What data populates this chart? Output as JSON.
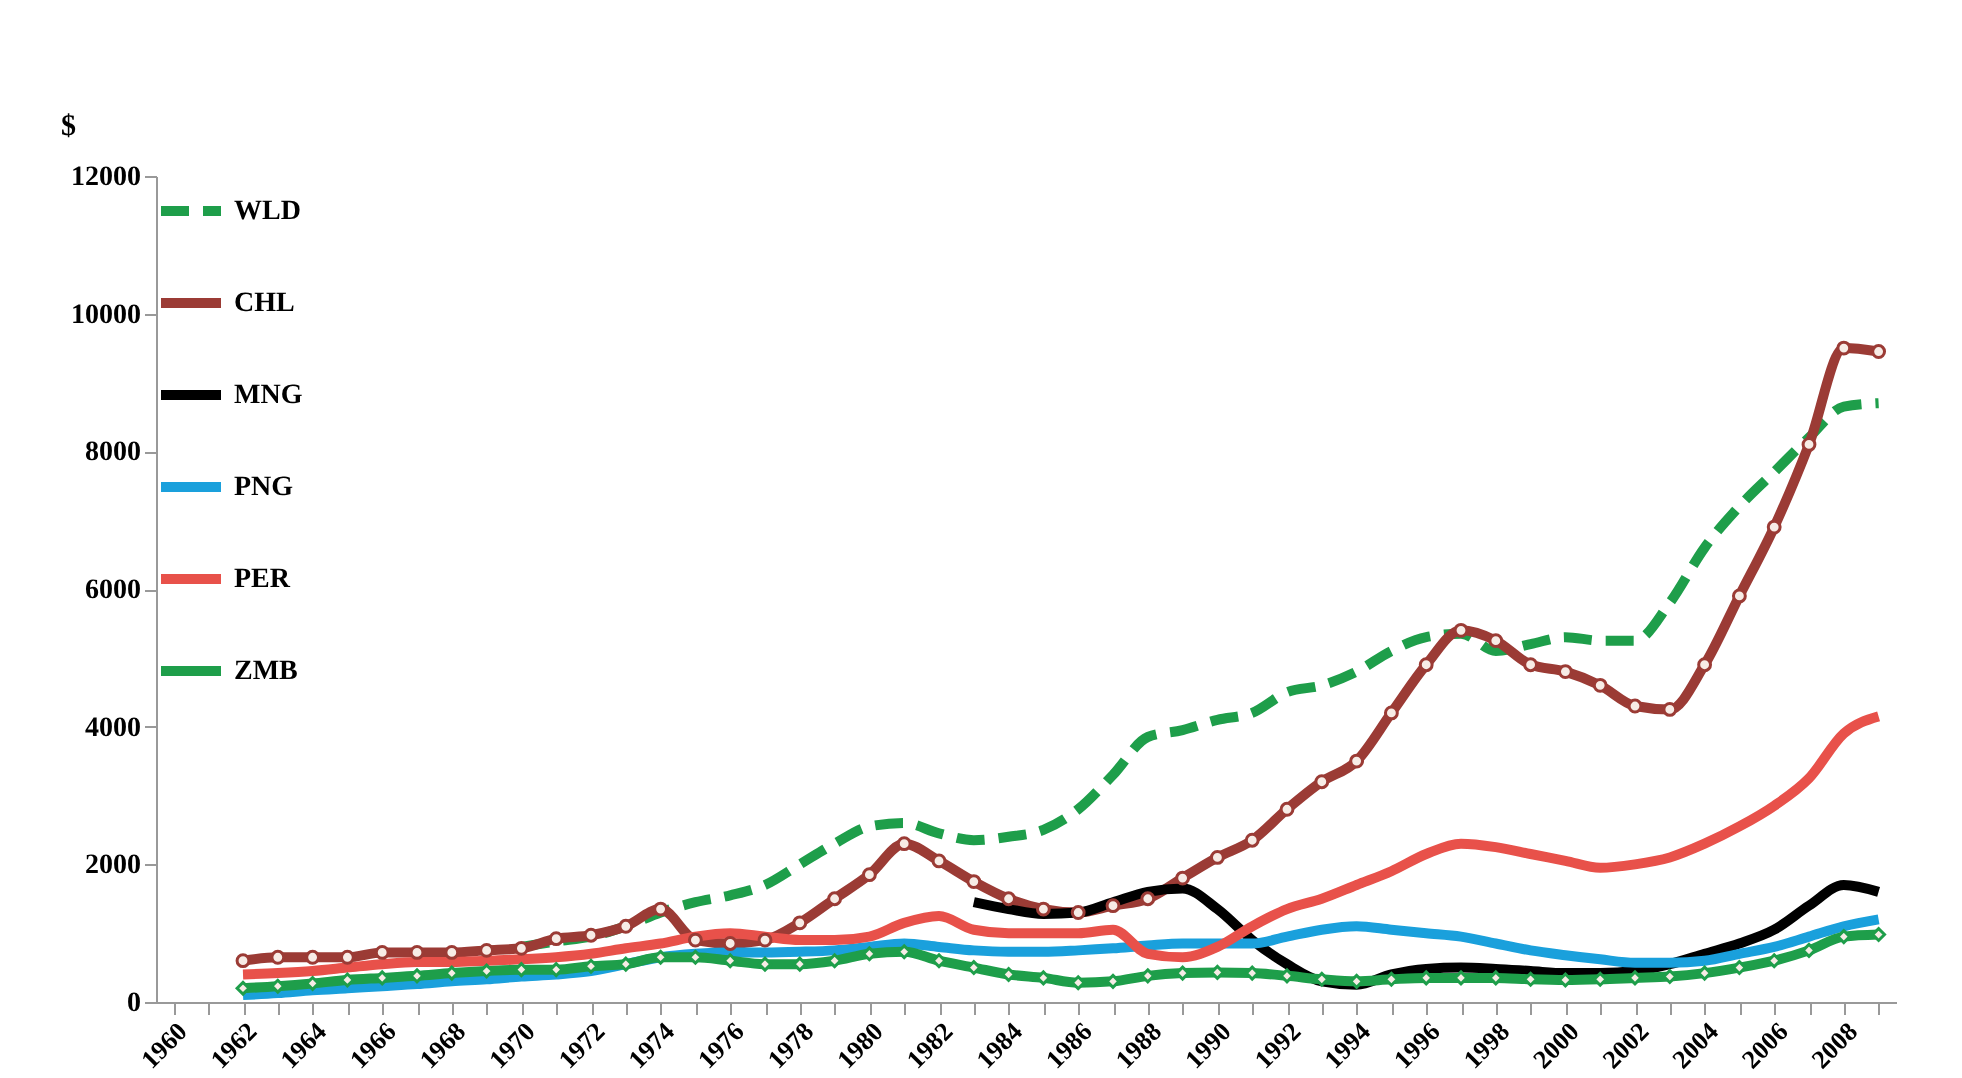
{
  "chart_data": {
    "type": "line",
    "ylabel": "$",
    "categories": [
      "1960",
      null,
      "1962",
      null,
      "1964",
      null,
      "1966",
      null,
      "1968",
      null,
      "1970",
      null,
      "1972",
      null,
      "1974",
      null,
      "1976",
      null,
      "1978",
      null,
      "1980",
      null,
      "1982",
      null,
      "1984",
      null,
      "1986",
      null,
      "1988",
      null,
      "1990",
      null,
      "1992",
      null,
      "1994",
      null,
      "1996",
      null,
      "1998",
      null,
      "2000",
      null,
      "2002",
      null,
      "2004",
      null,
      "2006",
      null,
      "2008",
      null
    ],
    "ylim": [
      0,
      12000
    ],
    "yticks": [
      0,
      2000,
      4000,
      6000,
      8000,
      10000,
      12000
    ],
    "grid": false,
    "legend": "top left",
    "series": [
      {
        "name": "WLD",
        "color": "#1e9e4a",
        "line_style": "dashed",
        "marker": "none",
        "values": [
          null,
          null,
          null,
          null,
          null,
          null,
          null,
          null,
          null,
          null,
          800,
          880,
          950,
          1100,
          1300,
          1450,
          1550,
          1700,
          2000,
          2300,
          2550,
          2600,
          2450,
          2350,
          2400,
          2500,
          2800,
          3300,
          3850,
          3950,
          4100,
          4200,
          4500,
          4600,
          4800,
          5100,
          5300,
          5350,
          5100,
          5200,
          5300,
          5250,
          5250,
          5800,
          6600,
          7200,
          7700,
          8200,
          8650,
          8700
        ]
      },
      {
        "name": "CHL",
        "color": "#9b3b35",
        "line_style": "solid",
        "marker": "circle",
        "values": [
          null,
          null,
          600,
          650,
          650,
          650,
          720,
          720,
          720,
          750,
          780,
          920,
          970,
          1100,
          1350,
          900,
          850,
          900,
          1150,
          1500,
          1850,
          2300,
          2050,
          1750,
          1500,
          1350,
          1300,
          1400,
          1500,
          1800,
          2100,
          2350,
          2800,
          3200,
          3500,
          4200,
          4900,
          5400,
          5250,
          4900,
          4800,
          4600,
          4300,
          4250,
          4900,
          5900,
          6900,
          8100,
          9500,
          9450
        ]
      },
      {
        "name": "MNG",
        "color": "#000000",
        "line_style": "solid",
        "marker": "none",
        "values": [
          null,
          null,
          null,
          null,
          null,
          null,
          null,
          null,
          null,
          null,
          null,
          null,
          null,
          null,
          null,
          null,
          null,
          null,
          null,
          null,
          null,
          null,
          null,
          1450,
          1350,
          1280,
          1300,
          1450,
          1600,
          1650,
          1350,
          900,
          550,
          300,
          250,
          400,
          480,
          500,
          480,
          450,
          420,
          420,
          450,
          550,
          700,
          850,
          1050,
          1400,
          1700,
          1600
        ]
      },
      {
        "name": "PNG",
        "color": "#1aa0dc",
        "line_style": "solid",
        "marker": "none",
        "values": [
          null,
          null,
          100,
          130,
          170,
          200,
          230,
          260,
          300,
          330,
          370,
          400,
          450,
          550,
          650,
          700,
          720,
          720,
          730,
          750,
          800,
          850,
          800,
          750,
          730,
          730,
          750,
          780,
          820,
          850,
          850,
          850,
          950,
          1050,
          1100,
          1050,
          1000,
          950,
          850,
          750,
          680,
          620,
          570,
          570,
          600,
          700,
          800,
          950,
          1100,
          1200
        ]
      },
      {
        "name": "PER",
        "color": "#e8514a",
        "line_style": "solid",
        "marker": "none",
        "values": [
          null,
          null,
          400,
          420,
          450,
          500,
          550,
          580,
          580,
          600,
          620,
          650,
          700,
          780,
          850,
          950,
          1000,
          950,
          900,
          900,
          950,
          1150,
          1250,
          1050,
          1000,
          1000,
          1000,
          1050,
          700,
          650,
          800,
          1100,
          1350,
          1500,
          1700,
          1900,
          2150,
          2300,
          2250,
          2150,
          2050,
          1950,
          2000,
          2100,
          2300,
          2550,
          2850,
          3250,
          3900,
          4150
        ]
      },
      {
        "name": "ZMB",
        "color": "#1e9e4a",
        "line_style": "solid",
        "marker": "diamond",
        "values": [
          null,
          null,
          200,
          230,
          270,
          320,
          350,
          380,
          420,
          450,
          470,
          470,
          520,
          550,
          650,
          650,
          600,
          550,
          550,
          600,
          700,
          730,
          600,
          500,
          400,
          350,
          280,
          300,
          380,
          420,
          430,
          420,
          380,
          330,
          300,
          330,
          350,
          350,
          350,
          330,
          320,
          330,
          350,
          370,
          420,
          500,
          600,
          750,
          950,
          980
        ]
      }
    ]
  }
}
